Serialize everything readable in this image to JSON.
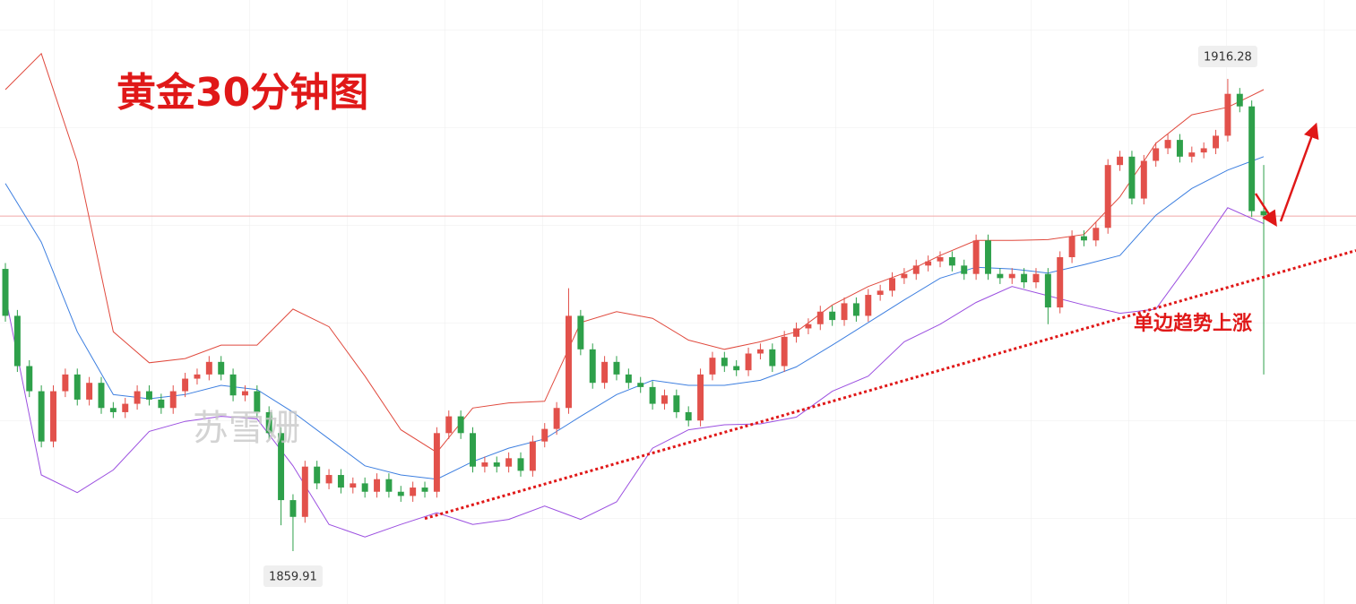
{
  "chart_data": {
    "type": "candlestick",
    "title": "黄金30分钟图",
    "annotation": "单边趋势上涨",
    "watermark": "苏雪姗",
    "xlim": [
      -0.45,
      112.7
    ],
    "ylim": [
      1853.6,
      1925.7
    ],
    "up_color": "#e2514b",
    "down_color": "#2ea04a",
    "ohlc": [
      [
        1893.6,
        1894.3,
        1887.3,
        1888
      ],
      [
        1888,
        1888.7,
        1881.3,
        1882
      ],
      [
        1882,
        1882.7,
        1878.3,
        1879
      ],
      [
        1879,
        1879.7,
        1872.3,
        1873
      ],
      [
        1873,
        1879.7,
        1872.3,
        1879
      ],
      [
        1879,
        1881.7,
        1878.3,
        1881
      ],
      [
        1881,
        1881.7,
        1877.3,
        1878
      ],
      [
        1878,
        1880.7,
        1877.3,
        1880
      ],
      [
        1880,
        1880.7,
        1876.3,
        1877
      ],
      [
        1877,
        1877.7,
        1875.8,
        1876.5
      ],
      [
        1876.5,
        1878.2,
        1875.8,
        1877.5
      ],
      [
        1877.5,
        1879.7,
        1876.8,
        1879
      ],
      [
        1879,
        1879.7,
        1877.3,
        1878
      ],
      [
        1878,
        1878.7,
        1876.3,
        1877
      ],
      [
        1877,
        1879.7,
        1876.3,
        1879
      ],
      [
        1879,
        1881.2,
        1878.3,
        1880.5
      ],
      [
        1880.5,
        1881.7,
        1879.8,
        1881
      ],
      [
        1881,
        1883.2,
        1880.3,
        1882.5
      ],
      [
        1882.5,
        1883.2,
        1880.3,
        1881
      ],
      [
        1881,
        1881.7,
        1877.8,
        1878.5
      ],
      [
        1878.5,
        1879.7,
        1877.8,
        1879
      ],
      [
        1879,
        1879.7,
        1875.8,
        1876.5
      ],
      [
        1876.5,
        1877.2,
        1873.3,
        1874
      ],
      [
        1874,
        1874.7,
        1863,
        1866
      ],
      [
        1866,
        1866.7,
        1859.91,
        1864
      ],
      [
        1864,
        1870.7,
        1863.3,
        1870
      ],
      [
        1870,
        1870.7,
        1867.3,
        1868
      ],
      [
        1868,
        1869.7,
        1867.3,
        1869
      ],
      [
        1869,
        1869.7,
        1866.8,
        1867.5
      ],
      [
        1867.5,
        1868.7,
        1866.8,
        1868
      ],
      [
        1868,
        1868.7,
        1866.3,
        1867
      ],
      [
        1867,
        1869.2,
        1866.3,
        1868.5
      ],
      [
        1868.5,
        1869.2,
        1866.3,
        1867
      ],
      [
        1867,
        1867.7,
        1865.8,
        1866.5
      ],
      [
        1866.5,
        1868.2,
        1865.8,
        1867.5
      ],
      [
        1867.5,
        1868.2,
        1866.3,
        1867
      ],
      [
        1867,
        1874.7,
        1866.3,
        1874
      ],
      [
        1874,
        1876.7,
        1873.3,
        1876
      ],
      [
        1876,
        1876.7,
        1873.3,
        1874
      ],
      [
        1874,
        1874.7,
        1869.3,
        1870
      ],
      [
        1870,
        1871.2,
        1869.3,
        1870.5
      ],
      [
        1870.5,
        1871.2,
        1869.3,
        1870
      ],
      [
        1870,
        1871.7,
        1869.3,
        1871
      ],
      [
        1871,
        1871.7,
        1868.8,
        1869.5
      ],
      [
        1869.5,
        1873.7,
        1868.8,
        1873
      ],
      [
        1873,
        1875.2,
        1872.3,
        1874.5
      ],
      [
        1874.5,
        1877.7,
        1873.8,
        1877
      ],
      [
        1877,
        1891.3,
        1876.3,
        1888
      ],
      [
        1888,
        1888.7,
        1883.3,
        1884
      ],
      [
        1884,
        1884.7,
        1879.3,
        1880
      ],
      [
        1880,
        1883.2,
        1879.3,
        1882.5
      ],
      [
        1882.5,
        1883.2,
        1880.3,
        1881
      ],
      [
        1881,
        1881.7,
        1879.3,
        1880
      ],
      [
        1880,
        1880.7,
        1878.8,
        1879.5
      ],
      [
        1879.5,
        1880.2,
        1876.8,
        1877.5
      ],
      [
        1877.5,
        1879.2,
        1876.8,
        1878.5
      ],
      [
        1878.5,
        1879.2,
        1875.8,
        1876.5
      ],
      [
        1876.5,
        1877.2,
        1874.8,
        1875.5
      ],
      [
        1875.5,
        1881.7,
        1874.8,
        1881
      ],
      [
        1881,
        1883.7,
        1880.3,
        1883
      ],
      [
        1883,
        1883.7,
        1881.3,
        1882
      ],
      [
        1882,
        1882.7,
        1880.8,
        1881.5
      ],
      [
        1881.5,
        1884.2,
        1880.8,
        1883.5
      ],
      [
        1883.5,
        1884.7,
        1882.8,
        1884
      ],
      [
        1884,
        1884.7,
        1881.3,
        1882
      ],
      [
        1882,
        1886.2,
        1881.3,
        1885.5
      ],
      [
        1885.5,
        1887.2,
        1884.8,
        1886.5
      ],
      [
        1886.5,
        1887.7,
        1885.8,
        1887
      ],
      [
        1887,
        1889.2,
        1886.3,
        1888.5
      ],
      [
        1888.5,
        1889.2,
        1886.8,
        1887.5
      ],
      [
        1887.5,
        1890.2,
        1886.8,
        1889.5
      ],
      [
        1889.5,
        1890.2,
        1887.3,
        1888
      ],
      [
        1888,
        1891.2,
        1887.3,
        1890.5
      ],
      [
        1890.5,
        1891.7,
        1889.8,
        1891
      ],
      [
        1891,
        1893.2,
        1890.3,
        1892.5
      ],
      [
        1892.5,
        1893.7,
        1891.8,
        1893
      ],
      [
        1893,
        1894.7,
        1892.3,
        1894
      ],
      [
        1894,
        1895.2,
        1893.3,
        1894.5
      ],
      [
        1894.5,
        1895.7,
        1893.8,
        1895
      ],
      [
        1895,
        1895.7,
        1893.3,
        1894
      ],
      [
        1894,
        1894.7,
        1892.3,
        1893
      ],
      [
        1893,
        1897.7,
        1892.3,
        1897
      ],
      [
        1897,
        1897.7,
        1892.3,
        1893
      ],
      [
        1893,
        1893.7,
        1891.8,
        1892.5
      ],
      [
        1892.5,
        1893.7,
        1891.8,
        1893
      ],
      [
        1893,
        1893.7,
        1891.3,
        1892
      ],
      [
        1892,
        1893.7,
        1891.3,
        1893
      ],
      [
        1893,
        1893.7,
        1887,
        1889
      ],
      [
        1889,
        1895.7,
        1888.3,
        1895
      ],
      [
        1895,
        1898.2,
        1894.3,
        1897.5
      ],
      [
        1897.5,
        1898.2,
        1896.3,
        1897
      ],
      [
        1897,
        1899.2,
        1896.3,
        1898.5
      ],
      [
        1898.5,
        1906.7,
        1897.8,
        1906
      ],
      [
        1906,
        1907.7,
        1905.3,
        1907
      ],
      [
        1907,
        1907.7,
        1901.3,
        1902
      ],
      [
        1902,
        1907.2,
        1901.3,
        1906.5
      ],
      [
        1906.5,
        1908.7,
        1905.8,
        1908
      ],
      [
        1908,
        1909.7,
        1907.3,
        1909
      ],
      [
        1909,
        1909.7,
        1906.3,
        1907
      ],
      [
        1907,
        1908.2,
        1906.3,
        1907.5
      ],
      [
        1907.5,
        1908.7,
        1906.8,
        1908
      ],
      [
        1908,
        1910.2,
        1907.3,
        1909.5
      ],
      [
        1909.5,
        1916.28,
        1908.8,
        1914.5
      ],
      [
        1914.5,
        1915.2,
        1912.3,
        1913
      ],
      [
        1913,
        1913.7,
        1899.8,
        1900.5
      ],
      [
        1900.5,
        1906,
        1881,
        1900
      ]
    ],
    "band_x": [
      0,
      3,
      6,
      9,
      12,
      15,
      18,
      21,
      24,
      27,
      30,
      33,
      36,
      39,
      42,
      45,
      48,
      51,
      54,
      57,
      60,
      63,
      66,
      69,
      72,
      75,
      78,
      81,
      84,
      87,
      90,
      93,
      96,
      99,
      102,
      105
    ],
    "bands": [
      {
        "color": "#e0493d",
        "values": [
          1915.0,
          1919.3,
          1906.4,
          1886.1,
          1882.4,
          1882.9,
          1884.5,
          1884.5,
          1888.8,
          1886.7,
          1880.8,
          1874.4,
          1871.7,
          1877.0,
          1877.6,
          1877.8,
          1887.2,
          1888.5,
          1887.7,
          1885.1,
          1884.0,
          1884.9,
          1886.1,
          1889.3,
          1891.5,
          1893.1,
          1895.2,
          1897.0,
          1897.0,
          1897.1,
          1897.7,
          1902.2,
          1908.6,
          1912.0,
          1912.9,
          1915.0
        ]
      },
      {
        "color": "#3d7fe0",
        "values": [
          1903.8,
          1896.8,
          1886.1,
          1878.6,
          1878.1,
          1878.6,
          1879.7,
          1879.2,
          1876.5,
          1873.3,
          1870.1,
          1869.0,
          1868.5,
          1870.6,
          1872.2,
          1873.3,
          1876.0,
          1878.6,
          1880.3,
          1879.7,
          1879.7,
          1880.3,
          1881.9,
          1884.5,
          1887.2,
          1889.9,
          1892.5,
          1893.8,
          1893.6,
          1893.1,
          1894.1,
          1895.2,
          1900.0,
          1903.2,
          1905.4,
          1907.0
        ]
      },
      {
        "color": "#9b4fe0",
        "values": [
          1890.4,
          1869.0,
          1866.9,
          1869.6,
          1874.2,
          1875.4,
          1876.0,
          1875.7,
          1870.1,
          1863.1,
          1861.6,
          1863.1,
          1864.5,
          1863.1,
          1863.7,
          1865.3,
          1863.7,
          1865.8,
          1872.2,
          1874.4,
          1875.0,
          1875.1,
          1875.9,
          1879.0,
          1880.8,
          1884.9,
          1887.0,
          1889.6,
          1891.5,
          1890.4,
          1889.3,
          1888.3,
          1888.8,
          1894.7,
          1900.9,
          1899.0
        ]
      }
    ],
    "trend_line": {
      "color": "#e01818",
      "x": [
        35,
        112.7
      ],
      "values": [
        1863.8,
        1895.8
      ]
    },
    "price_line": {
      "color": "#f0a8a8",
      "value": 1899.9
    },
    "max_label": {
      "x": 102,
      "value": 1916.28
    },
    "min_label": {
      "x": 24,
      "value": 1859.91
    }
  }
}
